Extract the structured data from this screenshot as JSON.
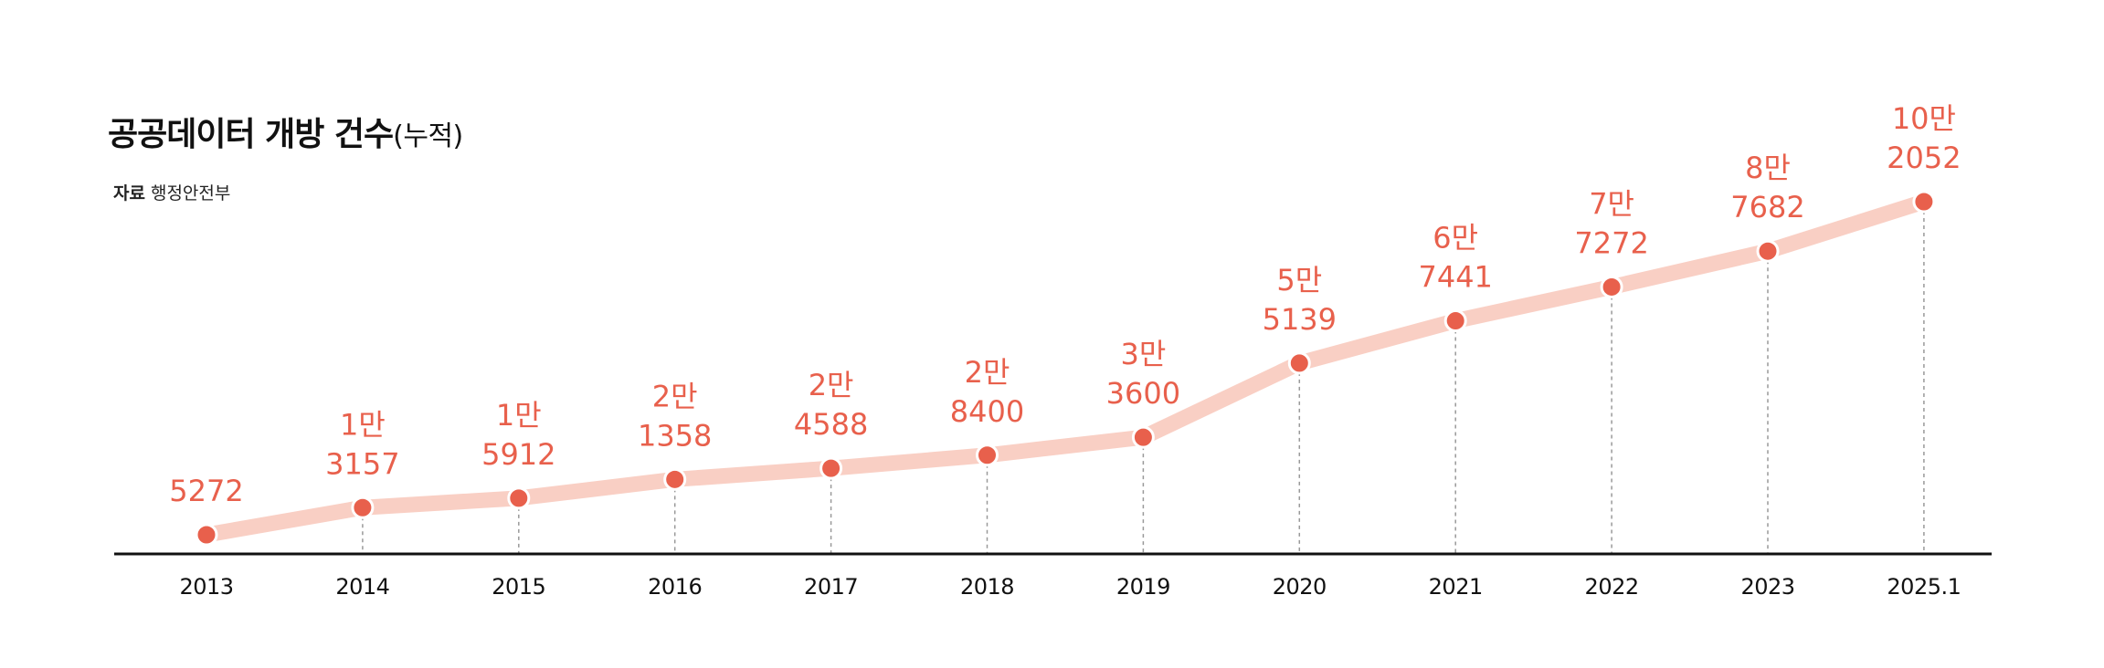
{
  "title": "공공데이터 개방 건수",
  "title_suffix": "(누적)",
  "source": {
    "label": "자료",
    "value": "행정안전부"
  },
  "colors": {
    "line": "#F9CFC4",
    "point": "#E8604C",
    "label": "#E8604C",
    "axis": "#111111",
    "dash": "#999999"
  },
  "chart_data": {
    "type": "line",
    "title": "공공데이터 개방 건수(누적)",
    "categories": [
      "2013",
      "2014",
      "2015",
      "2016",
      "2017",
      "2018",
      "2019",
      "2020",
      "2021",
      "2022",
      "2023",
      "2025.1"
    ],
    "values": [
      5272,
      13157,
      15912,
      21358,
      24588,
      28400,
      33600,
      55139,
      67441,
      77272,
      87682,
      102052
    ],
    "data_labels": [
      [
        "5272"
      ],
      [
        "1만",
        "3157"
      ],
      [
        "1만",
        "5912"
      ],
      [
        "2만",
        "1358"
      ],
      [
        "2만",
        "4588"
      ],
      [
        "2만",
        "8400"
      ],
      [
        "3만",
        "3600"
      ],
      [
        "5만",
        "5139"
      ],
      [
        "6만",
        "7441"
      ],
      [
        "7만",
        "7272"
      ],
      [
        "8만",
        "7682"
      ],
      [
        "10만",
        "2052"
      ]
    ],
    "xlabel": "",
    "ylabel": "",
    "ylim": [
      0,
      110000
    ],
    "grid": false,
    "legend": "none"
  }
}
